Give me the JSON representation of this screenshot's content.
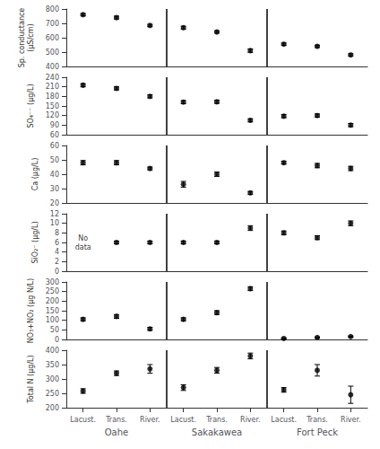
{
  "chart_data": [
    {
      "type": "scatter",
      "ylabel": "Sp. conductance\n(μS/cm)",
      "categories": [
        "Lacust.",
        "Trans.",
        "River.",
        "Lacust.",
        "Trans.",
        "River.",
        "Lacust.",
        "Trans.",
        "River."
      ],
      "groups": [
        "Oahe",
        "Sakakawea",
        "Fort Peck"
      ],
      "values": [
        760,
        740,
        685,
        670,
        640,
        510,
        555,
        540,
        480
      ],
      "yerr": [
        8,
        10,
        8,
        10,
        8,
        12,
        8,
        8,
        8
      ],
      "ylim": [
        400,
        800
      ],
      "yticks": [
        400,
        500,
        600,
        700,
        800
      ],
      "color": "#000000",
      "marker": "circle",
      "grid": false,
      "tick_labels": "y"
    },
    {
      "type": "scatter",
      "ylabel": "SO₄⁻⁻ (μg/L)",
      "categories": [
        "Lacust.",
        "Trans.",
        "River.",
        "Lacust.",
        "Trans.",
        "River.",
        "Lacust.",
        "Trans.",
        "River."
      ],
      "groups": [
        "Oahe",
        "Sakakawea",
        "Fort Peck"
      ],
      "values": [
        215,
        205,
        180,
        162,
        163,
        105,
        118,
        120,
        90
      ],
      "yerr": [
        5,
        5,
        5,
        5,
        5,
        5,
        5,
        5,
        5
      ],
      "ylim": [
        60,
        240
      ],
      "yticks": [
        60,
        90,
        120,
        150,
        180,
        210,
        240
      ],
      "color": "#000000",
      "marker": "circle",
      "grid": false,
      "tick_labels": "y"
    },
    {
      "type": "scatter",
      "ylabel": "Ca (μg/L)",
      "categories": [
        "Lacust.",
        "Trans.",
        "River.",
        "Lacust.",
        "Trans.",
        "River.",
        "Lacust.",
        "Trans.",
        "River."
      ],
      "groups": [
        "Oahe",
        "Sakakawea",
        "Fort Peck"
      ],
      "values": [
        48,
        48,
        44,
        33,
        40,
        27,
        48,
        46,
        44
      ],
      "yerr": [
        1.5,
        1.5,
        1,
        2,
        1.5,
        1,
        1,
        1.5,
        1.5
      ],
      "ylim": [
        20,
        60
      ],
      "yticks": [
        20,
        30,
        40,
        50,
        60
      ],
      "color": "#000000",
      "marker": "circle",
      "grid": false,
      "tick_labels": "y"
    },
    {
      "type": "scatter",
      "ylabel": "SiO₂⁻ (μg/L)",
      "categories": [
        "Lacust.",
        "Trans.",
        "River.",
        "Lacust.",
        "Trans.",
        "River.",
        "Lacust.",
        "Trans.",
        "River."
      ],
      "groups": [
        "Oahe",
        "Sakakawea",
        "Fort Peck"
      ],
      "values": [
        null,
        6,
        6,
        6,
        6,
        9,
        8,
        7,
        10
      ],
      "yerr": [
        null,
        0.3,
        0.3,
        0.3,
        0.3,
        0.5,
        0.4,
        0.4,
        0.5
      ],
      "ylim": [
        0,
        12
      ],
      "yticks": [
        0,
        2,
        4,
        6,
        8,
        10,
        12
      ],
      "annotations": [
        {
          "text": "No\ndata",
          "x": 0,
          "y": 6
        }
      ],
      "color": "#000000",
      "marker": "circle",
      "grid": false,
      "tick_labels": "y"
    },
    {
      "type": "scatter",
      "ylabel": "NO₃+NO₂ (μg N/L)",
      "categories": [
        "Lacust.",
        "Trans.",
        "River.",
        "Lacust.",
        "Trans.",
        "River.",
        "Lacust.",
        "Trans.",
        "River."
      ],
      "groups": [
        "Oahe",
        "Sakakawea",
        "Fort Peck"
      ],
      "values": [
        105,
        120,
        55,
        105,
        140,
        265,
        5,
        10,
        15
      ],
      "yerr": [
        8,
        10,
        8,
        8,
        10,
        10,
        3,
        3,
        3
      ],
      "ylim": [
        0,
        300
      ],
      "yticks": [
        0,
        50,
        100,
        150,
        200,
        250,
        300
      ],
      "color": "#000000",
      "marker": "circle",
      "grid": false,
      "tick_labels": "y"
    },
    {
      "type": "scatter",
      "ylabel": "Total N (μg/L)",
      "categories": [
        "Lacust.",
        "Trans.",
        "River.",
        "Lacust.",
        "Trans.",
        "River.",
        "Lacust.",
        "Trans.",
        "River."
      ],
      "groups": [
        "Oahe",
        "Sakakawea",
        "Fort Peck"
      ],
      "values": [
        258,
        320,
        335,
        270,
        330,
        380,
        262,
        330,
        245
      ],
      "yerr": [
        8,
        8,
        15,
        10,
        10,
        10,
        8,
        20,
        30
      ],
      "ylim": [
        200,
        400
      ],
      "yticks": [
        200,
        250,
        300,
        350,
        400
      ],
      "color": "#000000",
      "marker": "circle",
      "grid": false
    }
  ]
}
